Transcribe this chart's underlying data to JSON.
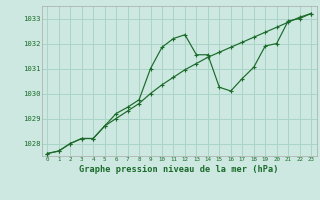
{
  "title": "Graphe pression niveau de la mer (hPa)",
  "bg_color": "#cce8e0",
  "grid_color": "#aad4c8",
  "line_color": "#1a6b2a",
  "text_color": "#1a6b2a",
  "xlim": [
    -0.5,
    23.5
  ],
  "ylim": [
    1027.5,
    1033.5
  ],
  "yticks": [
    1028,
    1029,
    1030,
    1031,
    1032,
    1033
  ],
  "xticks": [
    0,
    1,
    2,
    3,
    4,
    5,
    6,
    7,
    8,
    9,
    10,
    11,
    12,
    13,
    14,
    15,
    16,
    17,
    18,
    19,
    20,
    21,
    22,
    23
  ],
  "series1_x": [
    0,
    1,
    2,
    3,
    4,
    5,
    6,
    7,
    8,
    9,
    10,
    11,
    12,
    13,
    14,
    15,
    16,
    17,
    18,
    19,
    20,
    21,
    22,
    23
  ],
  "series1_y": [
    1027.6,
    1027.7,
    1028.0,
    1028.2,
    1028.2,
    1028.7,
    1029.2,
    1029.45,
    1029.75,
    1031.0,
    1031.85,
    1032.2,
    1032.35,
    1031.55,
    1031.55,
    1030.25,
    1030.1,
    1030.6,
    1031.05,
    1031.9,
    1032.0,
    1032.9,
    1033.0,
    1033.2
  ],
  "series2_x": [
    0,
    1,
    2,
    3,
    4,
    5,
    6,
    7,
    8,
    9,
    10,
    11,
    12,
    13,
    14,
    15,
    16,
    17,
    18,
    19,
    20,
    21,
    22,
    23
  ],
  "series2_y": [
    1027.6,
    1027.7,
    1028.0,
    1028.2,
    1028.2,
    1028.7,
    1029.0,
    1029.3,
    1029.6,
    1030.0,
    1030.35,
    1030.65,
    1030.95,
    1031.2,
    1031.45,
    1031.65,
    1031.85,
    1032.05,
    1032.25,
    1032.45,
    1032.65,
    1032.85,
    1033.05,
    1033.2
  ]
}
